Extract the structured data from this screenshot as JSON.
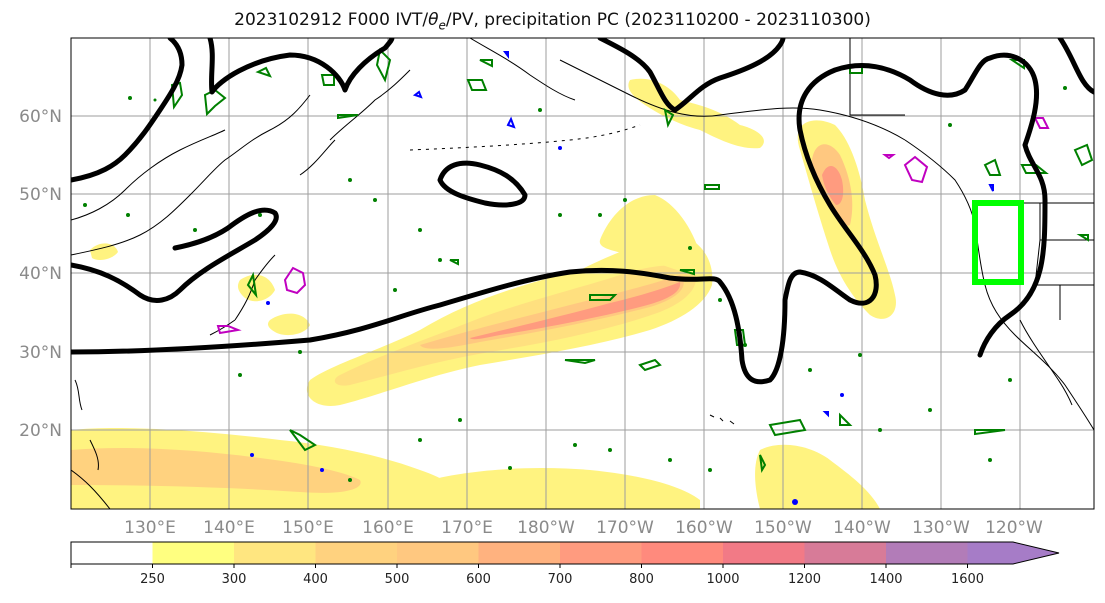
{
  "title": {
    "prefix": "2023102912 F000 IVT/",
    "theta_symbol": "θ",
    "theta_sub": "e",
    "suffix": "/PV, precipitation PC (2023110200 - 2023110300)"
  },
  "map": {
    "lat_ticks": [
      "60°N",
      "50°N",
      "40°N",
      "30°N",
      "20°N"
    ],
    "lon_ticks": [
      "130°E",
      "140°E",
      "150°E",
      "160°E",
      "170°E",
      "180°W",
      "170°W",
      "160°W",
      "150°W",
      "140°W",
      "130°W",
      "120°W"
    ],
    "highlight_box_color": "#00ff00",
    "contour_color": "#000000",
    "pv_contour_color": "#008000",
    "blue_contour_color": "#0000ff",
    "magenta_contour_color": "#c000c0"
  },
  "colorbar": {
    "labels": [
      "250",
      "300",
      "400",
      "500",
      "600",
      "700",
      "800",
      "1000",
      "1200",
      "1400",
      "1600"
    ],
    "colors": [
      "#ffffff",
      "#ffff80",
      "#ffe680",
      "#ffd27f",
      "#ffc880",
      "#ffb27f",
      "#ff9b7f",
      "#ff8a7d",
      "#f27a86",
      "#d77b98",
      "#b27cb8",
      "#a67cc7"
    ]
  }
}
